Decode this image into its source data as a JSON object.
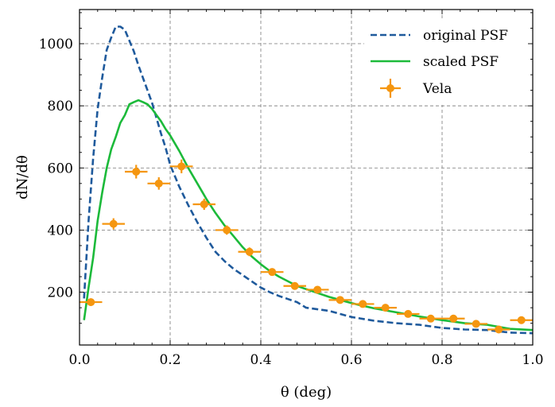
{
  "chart_data": {
    "type": "line",
    "title": "",
    "xlabel": "θ (deg)",
    "ylabel": "dN/dθ",
    "xlim": [
      0.0,
      1.0
    ],
    "ylim": [
      30,
      1110
    ],
    "grid": true,
    "legend_position": "top-right",
    "x_ticks": [
      0.0,
      0.2,
      0.4,
      0.6,
      0.8,
      1.0
    ],
    "x_tick_labels": [
      "0.0",
      "0.2",
      "0.4",
      "0.6",
      "0.8",
      "1.0"
    ],
    "y_ticks": [
      200,
      400,
      600,
      800,
      1000
    ],
    "y_tick_labels": [
      "200",
      "400",
      "600",
      "800",
      "1000"
    ],
    "series": [
      {
        "name": "original PSF",
        "style": "dashed",
        "color": "#1f5a9c",
        "x": [
          0.01,
          0.02,
          0.03,
          0.04,
          0.05,
          0.06,
          0.07,
          0.08,
          0.09,
          0.1,
          0.11,
          0.12,
          0.13,
          0.14,
          0.15,
          0.16,
          0.17,
          0.18,
          0.19,
          0.2,
          0.22,
          0.24,
          0.26,
          0.28,
          0.3,
          0.32,
          0.34,
          0.36,
          0.38,
          0.4,
          0.42,
          0.44,
          0.46,
          0.48,
          0.5,
          0.55,
          0.6,
          0.65,
          0.7,
          0.75,
          0.8,
          0.85,
          0.9,
          0.95,
          1.0
        ],
        "y": [
          180,
          430,
          630,
          790,
          890,
          980,
          1020,
          1055,
          1055,
          1045,
          1010,
          975,
          930,
          890,
          850,
          810,
          760,
          710,
          665,
          610,
          540,
          480,
          425,
          375,
          330,
          300,
          275,
          255,
          235,
          215,
          200,
          188,
          178,
          168,
          150,
          140,
          120,
          108,
          100,
          95,
          85,
          80,
          78,
          70,
          68
        ]
      },
      {
        "name": "scaled PSF",
        "style": "solid",
        "color": "#1cba3a",
        "x": [
          0.01,
          0.02,
          0.03,
          0.04,
          0.05,
          0.06,
          0.07,
          0.08,
          0.09,
          0.1,
          0.11,
          0.12,
          0.13,
          0.14,
          0.15,
          0.16,
          0.17,
          0.18,
          0.19,
          0.2,
          0.22,
          0.24,
          0.26,
          0.28,
          0.3,
          0.32,
          0.34,
          0.36,
          0.38,
          0.4,
          0.42,
          0.44,
          0.46,
          0.48,
          0.5,
          0.55,
          0.6,
          0.65,
          0.7,
          0.75,
          0.8,
          0.85,
          0.9,
          0.95,
          1.0
        ],
        "y": [
          110,
          215,
          310,
          430,
          520,
          600,
          660,
          700,
          745,
          770,
          805,
          812,
          818,
          812,
          805,
          790,
          770,
          750,
          725,
          705,
          655,
          600,
          550,
          500,
          455,
          415,
          380,
          345,
          315,
          290,
          268,
          250,
          235,
          220,
          210,
          185,
          165,
          148,
          135,
          122,
          110,
          100,
          95,
          82,
          78
        ]
      }
    ],
    "points": {
      "name": "Vela",
      "color": "#f5960f",
      "x": [
        0.025,
        0.075,
        0.125,
        0.175,
        0.225,
        0.275,
        0.325,
        0.375,
        0.425,
        0.475,
        0.525,
        0.575,
        0.625,
        0.675,
        0.725,
        0.775,
        0.825,
        0.875,
        0.925,
        0.975
      ],
      "y": [
        168,
        420,
        588,
        550,
        605,
        483,
        400,
        330,
        265,
        220,
        208,
        175,
        162,
        150,
        130,
        115,
        115,
        98,
        80,
        110
      ],
      "x_err": [
        0.025,
        0.025,
        0.025,
        0.025,
        0.025,
        0.025,
        0.025,
        0.025,
        0.025,
        0.025,
        0.025,
        0.025,
        0.025,
        0.025,
        0.025,
        0.025,
        0.025,
        0.025,
        0.025,
        0.025
      ],
      "y_err": [
        12,
        18,
        22,
        20,
        22,
        18,
        15,
        14,
        12,
        10,
        9,
        8,
        8,
        7,
        7,
        6,
        6,
        6,
        5,
        6
      ]
    }
  }
}
